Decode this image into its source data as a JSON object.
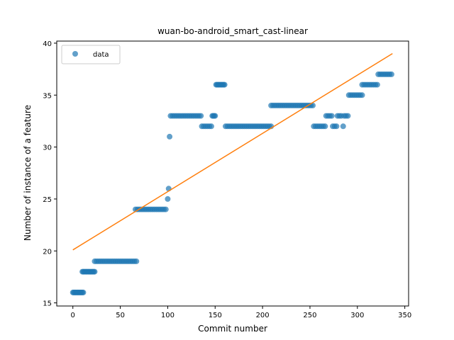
{
  "chart_data": {
    "type": "scatter",
    "title": "wuan-bo-android_smart_cast-linear",
    "xlabel": "Commit number",
    "ylabel": "Number of instance of a feature",
    "xlim": [
      -17,
      354
    ],
    "ylim": [
      14.7,
      40.2
    ],
    "xticks": [
      0,
      50,
      100,
      150,
      200,
      250,
      300,
      350
    ],
    "yticks": [
      15,
      20,
      25,
      30,
      35,
      40
    ],
    "legend": {
      "position": "top-left",
      "entries": [
        "data"
      ]
    },
    "colors": {
      "data": "#1f77b4",
      "fit": "#ff7f0e"
    },
    "series": [
      {
        "name": "data",
        "kind": "scatter",
        "points": [
          [
            0,
            16
          ],
          [
            1,
            16
          ],
          [
            2,
            16
          ],
          [
            3,
            16
          ],
          [
            4,
            16
          ],
          [
            5,
            16
          ],
          [
            6,
            16
          ],
          [
            7,
            16
          ],
          [
            8,
            16
          ],
          [
            9,
            16
          ],
          [
            10,
            16
          ],
          [
            11,
            16
          ],
          [
            10,
            18
          ],
          [
            11,
            18
          ],
          [
            12,
            18
          ],
          [
            13,
            18
          ],
          [
            14,
            18
          ],
          [
            15,
            18
          ],
          [
            16,
            18
          ],
          [
            17,
            18
          ],
          [
            18,
            18
          ],
          [
            19,
            18
          ],
          [
            20,
            18
          ],
          [
            21,
            18
          ],
          [
            22,
            18
          ],
          [
            23,
            18
          ],
          [
            23,
            19
          ],
          [
            25,
            19
          ],
          [
            27,
            19
          ],
          [
            29,
            19
          ],
          [
            31,
            19
          ],
          [
            33,
            19
          ],
          [
            35,
            19
          ],
          [
            37,
            19
          ],
          [
            39,
            19
          ],
          [
            41,
            19
          ],
          [
            43,
            19
          ],
          [
            45,
            19
          ],
          [
            47,
            19
          ],
          [
            49,
            19
          ],
          [
            51,
            19
          ],
          [
            53,
            19
          ],
          [
            55,
            19
          ],
          [
            57,
            19
          ],
          [
            59,
            19
          ],
          [
            61,
            19
          ],
          [
            63,
            19
          ],
          [
            65,
            19
          ],
          [
            67,
            19
          ],
          [
            66,
            24
          ],
          [
            68,
            24
          ],
          [
            70,
            24
          ],
          [
            72,
            24
          ],
          [
            74,
            24
          ],
          [
            76,
            24
          ],
          [
            78,
            24
          ],
          [
            80,
            24
          ],
          [
            82,
            24
          ],
          [
            84,
            24
          ],
          [
            86,
            24
          ],
          [
            88,
            24
          ],
          [
            90,
            24
          ],
          [
            92,
            24
          ],
          [
            94,
            24
          ],
          [
            96,
            24
          ],
          [
            98,
            24
          ],
          [
            100,
            25
          ],
          [
            101,
            26
          ],
          [
            102,
            31
          ],
          [
            103,
            33
          ],
          [
            105,
            33
          ],
          [
            107,
            33
          ],
          [
            109,
            33
          ],
          [
            111,
            33
          ],
          [
            113,
            33
          ],
          [
            115,
            33
          ],
          [
            117,
            33
          ],
          [
            119,
            33
          ],
          [
            121,
            33
          ],
          [
            123,
            33
          ],
          [
            125,
            33
          ],
          [
            127,
            33
          ],
          [
            129,
            33
          ],
          [
            131,
            33
          ],
          [
            133,
            33
          ],
          [
            135,
            33
          ],
          [
            136,
            32
          ],
          [
            138,
            32
          ],
          [
            140,
            32
          ],
          [
            142,
            32
          ],
          [
            144,
            32
          ],
          [
            146,
            32
          ],
          [
            147,
            33
          ],
          [
            148,
            33
          ],
          [
            149,
            33
          ],
          [
            150,
            33
          ],
          [
            151,
            36
          ],
          [
            152,
            36
          ],
          [
            153,
            36
          ],
          [
            154,
            36
          ],
          [
            155,
            36
          ],
          [
            156,
            36
          ],
          [
            157,
            36
          ],
          [
            158,
            36
          ],
          [
            159,
            36
          ],
          [
            160,
            36
          ],
          [
            161,
            32
          ],
          [
            163,
            32
          ],
          [
            165,
            32
          ],
          [
            167,
            32
          ],
          [
            169,
            32
          ],
          [
            171,
            32
          ],
          [
            173,
            32
          ],
          [
            175,
            32
          ],
          [
            177,
            32
          ],
          [
            179,
            32
          ],
          [
            181,
            32
          ],
          [
            183,
            32
          ],
          [
            185,
            32
          ],
          [
            187,
            32
          ],
          [
            189,
            32
          ],
          [
            191,
            32
          ],
          [
            193,
            32
          ],
          [
            195,
            32
          ],
          [
            197,
            32
          ],
          [
            199,
            32
          ],
          [
            201,
            32
          ],
          [
            203,
            32
          ],
          [
            205,
            32
          ],
          [
            207,
            32
          ],
          [
            209,
            32
          ],
          [
            209,
            34
          ],
          [
            211,
            34
          ],
          [
            213,
            34
          ],
          [
            215,
            34
          ],
          [
            217,
            34
          ],
          [
            219,
            34
          ],
          [
            221,
            34
          ],
          [
            223,
            34
          ],
          [
            225,
            34
          ],
          [
            227,
            34
          ],
          [
            229,
            34
          ],
          [
            231,
            34
          ],
          [
            233,
            34
          ],
          [
            235,
            34
          ],
          [
            237,
            34
          ],
          [
            239,
            34
          ],
          [
            241,
            34
          ],
          [
            243,
            34
          ],
          [
            245,
            34
          ],
          [
            247,
            34
          ],
          [
            249,
            34
          ],
          [
            251,
            34
          ],
          [
            253,
            34
          ],
          [
            254,
            32
          ],
          [
            256,
            32
          ],
          [
            258,
            32
          ],
          [
            260,
            32
          ],
          [
            262,
            32
          ],
          [
            264,
            32
          ],
          [
            266,
            32
          ],
          [
            267,
            33
          ],
          [
            269,
            33
          ],
          [
            271,
            33
          ],
          [
            273,
            33
          ],
          [
            274,
            32
          ],
          [
            276,
            32
          ],
          [
            278,
            32
          ],
          [
            279,
            33
          ],
          [
            281,
            33
          ],
          [
            283,
            33
          ],
          [
            285,
            32
          ],
          [
            286,
            33
          ],
          [
            288,
            33
          ],
          [
            290,
            33
          ],
          [
            291,
            35
          ],
          [
            293,
            35
          ],
          [
            295,
            35
          ],
          [
            297,
            35
          ],
          [
            299,
            35
          ],
          [
            301,
            35
          ],
          [
            303,
            35
          ],
          [
            305,
            35
          ],
          [
            305,
            36
          ],
          [
            307,
            36
          ],
          [
            309,
            36
          ],
          [
            311,
            36
          ],
          [
            313,
            36
          ],
          [
            315,
            36
          ],
          [
            317,
            36
          ],
          [
            319,
            36
          ],
          [
            321,
            36
          ],
          [
            322,
            37
          ],
          [
            324,
            37
          ],
          [
            326,
            37
          ],
          [
            328,
            37
          ],
          [
            330,
            37
          ],
          [
            332,
            37
          ],
          [
            334,
            37
          ],
          [
            336,
            37
          ]
        ]
      },
      {
        "name": "",
        "kind": "line",
        "points": [
          [
            0,
            20.1
          ],
          [
            337,
            39.0
          ]
        ]
      }
    ]
  }
}
